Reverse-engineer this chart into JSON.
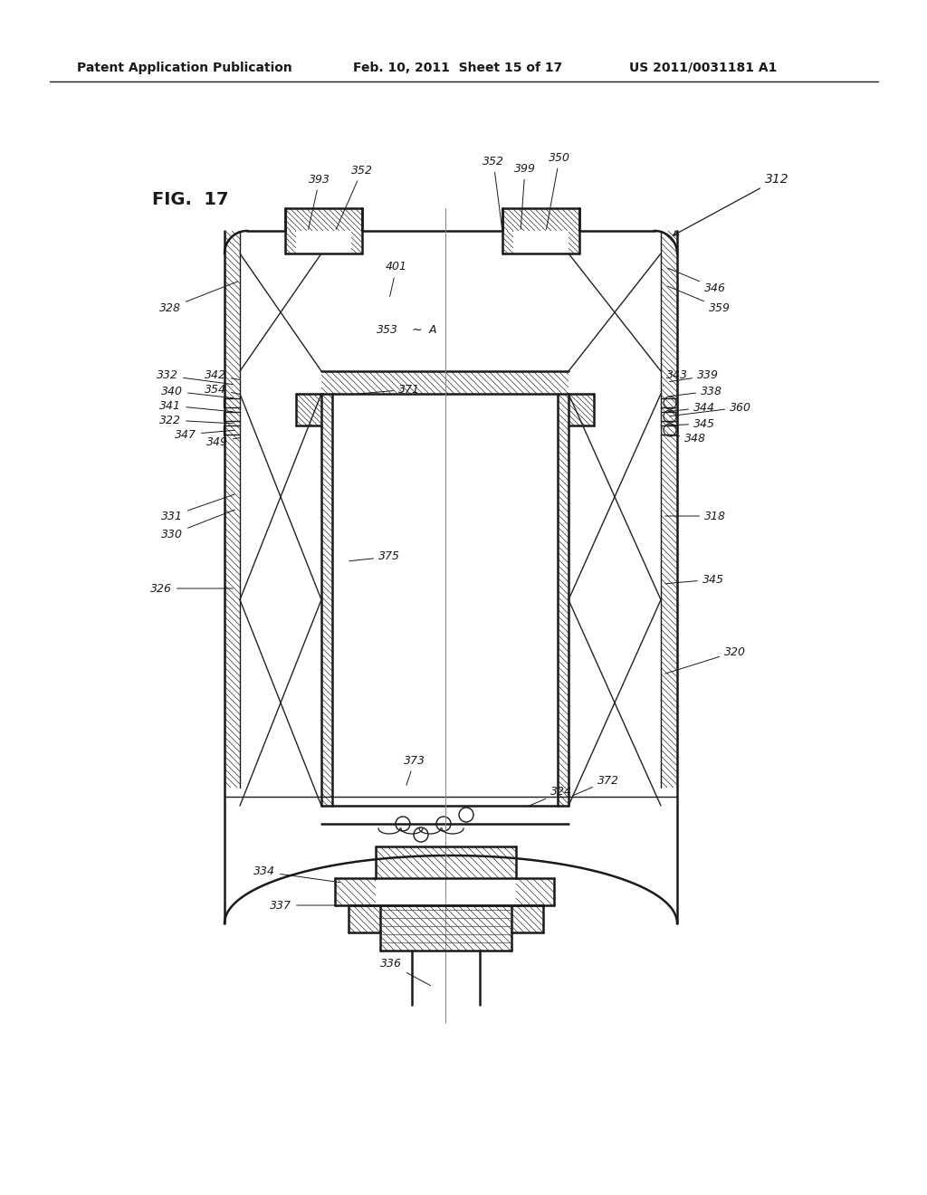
{
  "bg_color": "#ffffff",
  "line_color": "#1a1a1a",
  "header_text": "Patent Application Publication",
  "header_date": "Feb. 10, 2011  Sheet 15 of 17",
  "header_patent": "US 2011/0031181 A1",
  "fig_label": "FIG. 17"
}
